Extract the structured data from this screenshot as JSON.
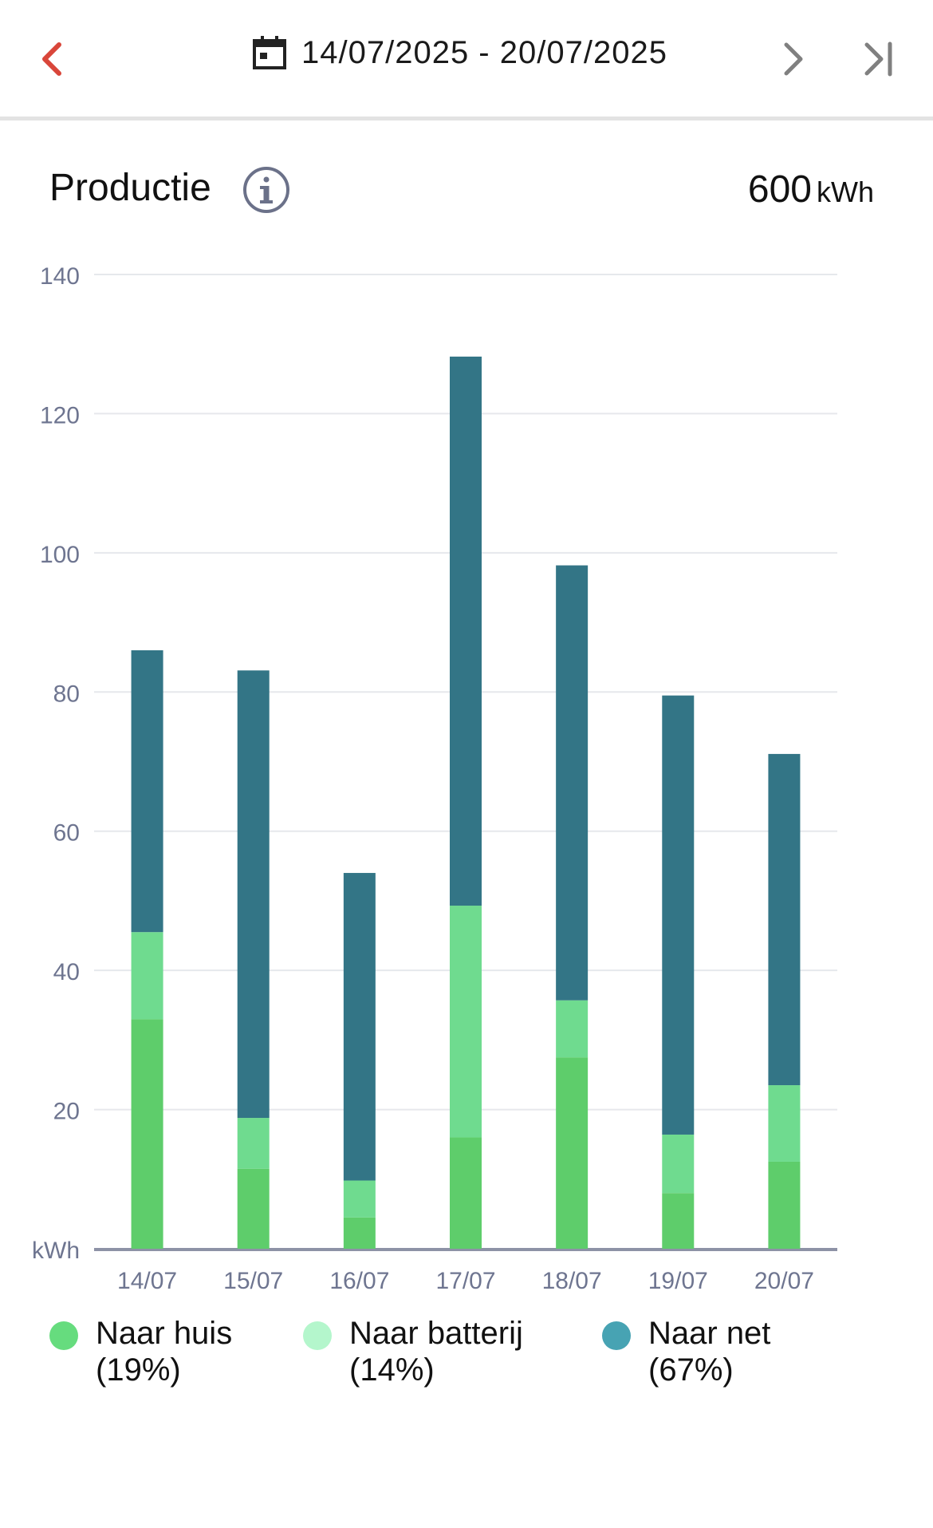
{
  "header": {
    "date_range": "14/07/2025 - 20/07/2025"
  },
  "section": {
    "title": "Productie",
    "total_value": "600",
    "total_unit": "kWh"
  },
  "colors": {
    "accent_prev": "#d9463a",
    "huis": "#5ecd6b",
    "batterij": "#6fdb8f",
    "net": "#337586",
    "legend_huis": "#66dc7e",
    "legend_batterij": "#b4f6cc",
    "legend_net": "#47a3b3"
  },
  "chart_data": {
    "type": "bar",
    "stacked": true,
    "categories": [
      "14/07",
      "15/07",
      "16/07",
      "17/07",
      "18/07",
      "19/07",
      "20/07"
    ],
    "series": [
      {
        "name": "Naar huis",
        "values": [
          33,
          11.5,
          4.5,
          16,
          27.5,
          8,
          12.5
        ]
      },
      {
        "name": "Naar batterij",
        "values": [
          12.5,
          7.3,
          5.3,
          33.3,
          8.2,
          8.4,
          11
        ]
      },
      {
        "name": "Naar net",
        "values": [
          40.5,
          64.3,
          44.2,
          78.9,
          62.5,
          63.1,
          47.6
        ]
      }
    ],
    "yticks": [
      20,
      40,
      60,
      80,
      100,
      120,
      140
    ],
    "ylabel": "kWh",
    "ylim": [
      0,
      140
    ],
    "grid": true,
    "legend_position": "bottom"
  },
  "legend": [
    {
      "label": "Naar huis",
      "pct": "(19%)"
    },
    {
      "label": "Naar batterij",
      "pct": "(14%)"
    },
    {
      "label": "Naar net",
      "pct": "(67%)"
    }
  ]
}
